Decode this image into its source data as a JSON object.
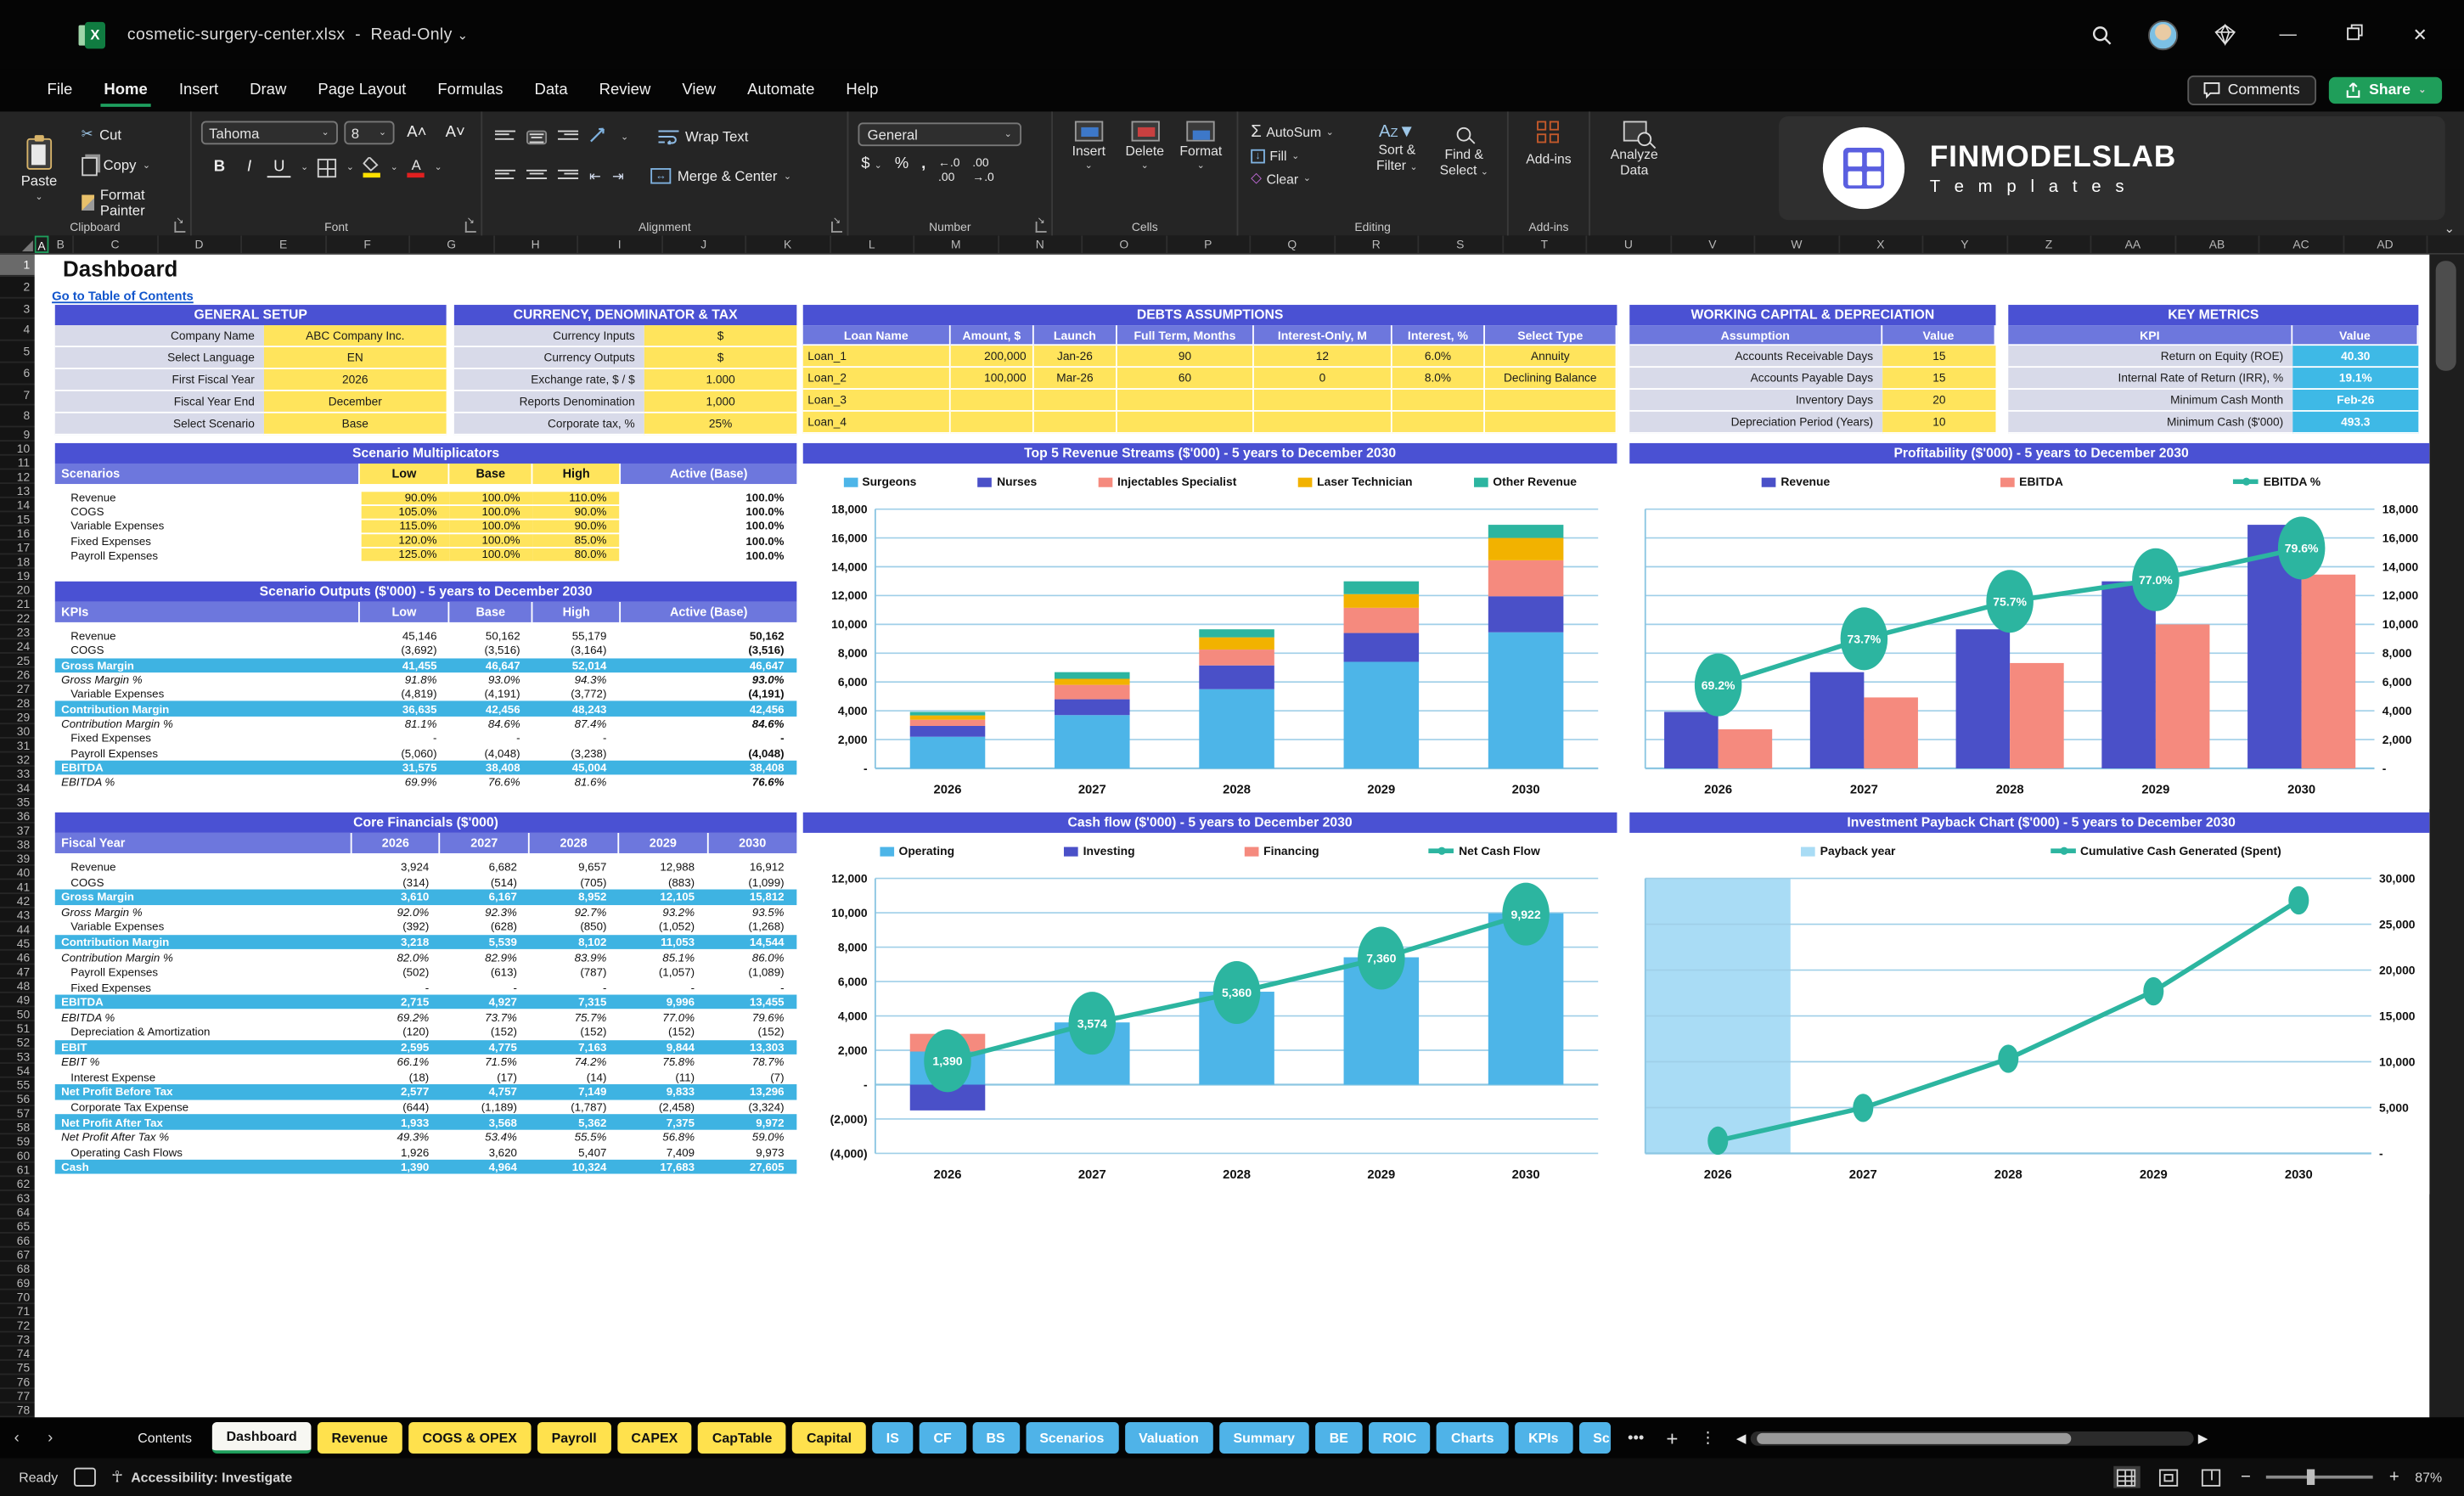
{
  "window": {
    "title": "cosmetic-surgery-center.xlsx",
    "separator": "-",
    "mode": "Read-Only",
    "menu_tabs": [
      "File",
      "Home",
      "Insert",
      "Draw",
      "Page Layout",
      "Formulas",
      "Data",
      "Review",
      "View",
      "Automate",
      "Help"
    ],
    "active_tab": "Home",
    "comments_label": "Comments",
    "share_label": "Share"
  },
  "ribbon": {
    "paste": "Paste",
    "cut": "Cut",
    "copy": "Copy",
    "format_painter": "Format Painter",
    "clipboard_group": "Clipboard",
    "font_name": "Tahoma",
    "font_size": "8",
    "font_group": "Font",
    "wrap_text": "Wrap Text",
    "merge_center": "Merge & Center",
    "alignment_group": "Alignment",
    "number_format": "General",
    "number_group": "Number",
    "insert": "Insert",
    "delete": "Delete",
    "format": "Format",
    "cells_group": "Cells",
    "autosum": "AutoSum",
    "fill": "Fill",
    "clear": "Clear",
    "sort_filter_1": "Sort &",
    "sort_filter_2": "Filter",
    "find_select_1": "Find &",
    "find_select_2": "Select",
    "editing_group": "Editing",
    "addins": "Add-ins",
    "addins_group": "Add-ins",
    "analyze_1": "Analyze",
    "analyze_2": "Data"
  },
  "logo": {
    "line1": "FINMODELSLAB",
    "line2": "T e m p l a t e s"
  },
  "sheet": {
    "title": "Dashboard",
    "link": "Go to Table of Contents",
    "col_headers": [
      "A",
      "B",
      "C",
      "D",
      "E",
      "F",
      "G",
      "H",
      "I",
      "J",
      "K",
      "L",
      "M",
      "N",
      "O",
      "P",
      "Q",
      "R",
      "S",
      "T",
      "U",
      "V",
      "W",
      "X",
      "Y",
      "Z",
      "AA",
      "AB",
      "AC",
      "AD"
    ],
    "row_count": 78
  },
  "tables": {
    "general_setup": {
      "title": "GENERAL SETUP",
      "rows": [
        [
          "Company Name",
          "ABC Company Inc."
        ],
        [
          "Select Language",
          "EN"
        ],
        [
          "First Fiscal Year",
          "2026"
        ],
        [
          "Fiscal Year End",
          "December"
        ],
        [
          "Select Scenario",
          "Base"
        ]
      ]
    },
    "currency": {
      "title": "CURRENCY, DENOMINATOR & TAX",
      "rows": [
        [
          "Currency Inputs",
          "$"
        ],
        [
          "Currency Outputs",
          "$"
        ],
        [
          "Exchange rate, $ / $",
          "1.000"
        ],
        [
          "Reports Denomination",
          "1,000"
        ],
        [
          "Corporate tax, %",
          "25%"
        ]
      ]
    },
    "debts": {
      "title": "DEBTS ASSUMPTIONS",
      "cols": [
        "Loan Name",
        "Amount, $",
        "Launch",
        "Full Term, Months",
        "Interest-Only, M",
        "Interest, %",
        "Select Type"
      ],
      "rows": [
        [
          "Loan_1",
          "200,000",
          "Jan-26",
          "90",
          "12",
          "6.0%",
          "Annuity"
        ],
        [
          "Loan_2",
          "100,000",
          "Mar-26",
          "60",
          "0",
          "8.0%",
          "Declining Balance"
        ],
        [
          "Loan_3",
          "",
          "",
          "",
          "",
          "",
          ""
        ],
        [
          "Loan_4",
          "",
          "",
          "",
          "",
          "",
          ""
        ]
      ]
    },
    "working_capital": {
      "title": "WORKING CAPITAL & DEPRECIATION",
      "subhead": [
        "Assumption",
        "Value"
      ],
      "rows": [
        [
          "Accounts Receivable Days",
          "15"
        ],
        [
          "Accounts Payable Days",
          "15"
        ],
        [
          "Inventory Days",
          "20"
        ],
        [
          "Depreciation Period (Years)",
          "10"
        ]
      ]
    },
    "key_metrics": {
      "title": "KEY METRICS",
      "subhead": [
        "KPI",
        "Value"
      ],
      "rows": [
        [
          "Return on Equity (ROE)",
          "40.30"
        ],
        [
          "Internal Rate of Return (IRR), %",
          "19.1%"
        ],
        [
          "Minimum Cash Month",
          "Feb-26"
        ],
        [
          "Minimum Cash ($'000)",
          "493.3"
        ]
      ]
    },
    "scenario_multiplicators": {
      "title": "Scenario Multiplicators",
      "head_label": "Scenarios",
      "cols": [
        "Low",
        "Base",
        "High",
        "Active (Base)"
      ],
      "rows": [
        {
          "label": "Revenue",
          "v": [
            "90.0%",
            "100.0%",
            "110.0%",
            "100.0%"
          ],
          "s": ""
        },
        {
          "label": "COGS",
          "v": [
            "105.0%",
            "100.0%",
            "90.0%",
            "100.0%"
          ],
          "s": ""
        },
        {
          "label": "Variable Expenses",
          "v": [
            "115.0%",
            "100.0%",
            "90.0%",
            "100.0%"
          ],
          "s": ""
        },
        {
          "label": "Fixed Expenses",
          "v": [
            "120.0%",
            "100.0%",
            "85.0%",
            "100.0%"
          ],
          "s": ""
        },
        {
          "label": "Payroll Expenses",
          "v": [
            "125.0%",
            "100.0%",
            "80.0%",
            "100.0%"
          ],
          "s": ""
        }
      ]
    },
    "scenario_outputs": {
      "title": "Scenario Outputs ($'000) - 5 years to December 2030",
      "head_label": "KPIs",
      "cols": [
        "Low",
        "Base",
        "High",
        "Active (Base)"
      ],
      "rows": [
        {
          "label": "Revenue",
          "v": [
            "45,146",
            "50,162",
            "55,179",
            "50,162"
          ],
          "s": ""
        },
        {
          "label": "COGS",
          "v": [
            "(3,692)",
            "(3,516)",
            "(3,164)",
            "(3,516)"
          ],
          "s": ""
        },
        {
          "label": "Gross Margin",
          "v": [
            "41,455",
            "46,647",
            "52,014",
            "46,647"
          ],
          "s": "h"
        },
        {
          "label": "Gross Margin %",
          "v": [
            "91.8%",
            "93.0%",
            "94.3%",
            "93.0%"
          ],
          "s": "i"
        },
        {
          "label": "Variable Expenses",
          "v": [
            "(4,819)",
            "(4,191)",
            "(3,772)",
            "(4,191)"
          ],
          "s": ""
        },
        {
          "label": "Contribution Margin",
          "v": [
            "36,635",
            "42,456",
            "48,243",
            "42,456"
          ],
          "s": "h"
        },
        {
          "label": "Contribution Margin %",
          "v": [
            "81.1%",
            "84.6%",
            "87.4%",
            "84.6%"
          ],
          "s": "i"
        },
        {
          "label": "Fixed Expenses",
          "v": [
            "-",
            "-",
            "-",
            "-"
          ],
          "s": ""
        },
        {
          "label": "Payroll Expenses",
          "v": [
            "(5,060)",
            "(4,048)",
            "(3,238)",
            "(4,048)"
          ],
          "s": ""
        },
        {
          "label": "EBITDA",
          "v": [
            "31,575",
            "38,408",
            "45,004",
            "38,408"
          ],
          "s": "h"
        },
        {
          "label": "EBITDA %",
          "v": [
            "69.9%",
            "76.6%",
            "81.6%",
            "76.6%"
          ],
          "s": "i"
        }
      ]
    },
    "core_financials": {
      "title": "Core Financials ($'000)",
      "head_label": "Fiscal Year",
      "cols": [
        "2026",
        "2027",
        "2028",
        "2029",
        "2030"
      ],
      "rows": [
        {
          "label": "Revenue",
          "v": [
            "3,924",
            "6,682",
            "9,657",
            "12,988",
            "16,912"
          ],
          "s": ""
        },
        {
          "label": "COGS",
          "v": [
            "(314)",
            "(514)",
            "(705)",
            "(883)",
            "(1,099)"
          ],
          "s": ""
        },
        {
          "label": "Gross Margin",
          "v": [
            "3,610",
            "6,167",
            "8,952",
            "12,105",
            "15,812"
          ],
          "s": "h"
        },
        {
          "label": "Gross Margin %",
          "v": [
            "92.0%",
            "92.3%",
            "92.7%",
            "93.2%",
            "93.5%"
          ],
          "s": "i"
        },
        {
          "label": "Variable Expenses",
          "v": [
            "(392)",
            "(628)",
            "(850)",
            "(1,052)",
            "(1,268)"
          ],
          "s": ""
        },
        {
          "label": "Contribution Margin",
          "v": [
            "3,218",
            "5,539",
            "8,102",
            "11,053",
            "14,544"
          ],
          "s": "h"
        },
        {
          "label": "Contribution Margin %",
          "v": [
            "82.0%",
            "82.9%",
            "83.9%",
            "85.1%",
            "86.0%"
          ],
          "s": "i"
        },
        {
          "label": "Payroll Expenses",
          "v": [
            "(502)",
            "(613)",
            "(787)",
            "(1,057)",
            "(1,089)"
          ],
          "s": ""
        },
        {
          "label": "Fixed Expenses",
          "v": [
            "-",
            "-",
            "-",
            "-",
            "-"
          ],
          "s": ""
        },
        {
          "label": "EBITDA",
          "v": [
            "2,715",
            "4,927",
            "7,315",
            "9,996",
            "13,455"
          ],
          "s": "h"
        },
        {
          "label": "EBITDA %",
          "v": [
            "69.2%",
            "73.7%",
            "75.7%",
            "77.0%",
            "79.6%"
          ],
          "s": "i"
        },
        {
          "label": "Depreciation & Amortization",
          "v": [
            "(120)",
            "(152)",
            "(152)",
            "(152)",
            "(152)"
          ],
          "s": ""
        },
        {
          "label": "EBIT",
          "v": [
            "2,595",
            "4,775",
            "7,163",
            "9,844",
            "13,303"
          ],
          "s": "h"
        },
        {
          "label": "EBIT %",
          "v": [
            "66.1%",
            "71.5%",
            "74.2%",
            "75.8%",
            "78.7%"
          ],
          "s": "i"
        },
        {
          "label": "Interest Expense",
          "v": [
            "(18)",
            "(17)",
            "(14)",
            "(11)",
            "(7)"
          ],
          "s": ""
        },
        {
          "label": "Net Profit Before Tax",
          "v": [
            "2,577",
            "4,757",
            "7,149",
            "9,833",
            "13,296"
          ],
          "s": "h"
        },
        {
          "label": "Corporate Tax Expense",
          "v": [
            "(644)",
            "(1,189)",
            "(1,787)",
            "(2,458)",
            "(3,324)"
          ],
          "s": ""
        },
        {
          "label": "Net Profit After Tax",
          "v": [
            "1,933",
            "3,568",
            "5,362",
            "7,375",
            "9,972"
          ],
          "s": "h"
        },
        {
          "label": "Net Profit After Tax %",
          "v": [
            "49.3%",
            "53.4%",
            "55.5%",
            "56.8%",
            "59.0%"
          ],
          "s": "i"
        },
        {
          "label": "Operating Cash Flows",
          "v": [
            "1,926",
            "3,620",
            "5,407",
            "7,409",
            "9,973"
          ],
          "s": ""
        },
        {
          "label": "Cash",
          "v": [
            "1,390",
            "4,964",
            "10,324",
            "17,683",
            "27,605"
          ],
          "s": "h"
        }
      ]
    }
  },
  "chart_data": {
    "revenue_streams": {
      "type": "bar",
      "stacked": true,
      "title": "Top 5 Revenue Streams ($'000) - 5 years to December 2030",
      "categories": [
        "2026",
        "2027",
        "2028",
        "2029",
        "2030"
      ],
      "ylim": [
        0,
        18000
      ],
      "step": 2000,
      "ticks_side": "left",
      "ytick_labels": [
        "18,000",
        "16,000",
        "14,000",
        "12,000",
        "10,000",
        "8,000",
        "6,000",
        "4,000",
        "2,000",
        "-"
      ],
      "series": [
        {
          "name": "Surgeons",
          "color": "#4db5e8",
          "values": [
            2200,
            3700,
            5500,
            7400,
            9450
          ]
        },
        {
          "name": "Nurses",
          "color": "#4a50c8",
          "values": [
            750,
            1100,
            1650,
            2000,
            2500
          ]
        },
        {
          "name": "Injectables Specialist",
          "color": "#f58a7e",
          "values": [
            430,
            1000,
            1100,
            1750,
            2500
          ]
        },
        {
          "name": "Laser Technician",
          "color": "#f2b200",
          "values": [
            300,
            420,
            850,
            950,
            1550
          ]
        },
        {
          "name": "Other Revenue",
          "color": "#2cb5a0",
          "values": [
            244,
            462,
            557,
            888,
            912
          ]
        }
      ]
    },
    "profitability": {
      "type": "bar",
      "grouped": true,
      "title": "Profitability ($'000) - 5 years to December 2030",
      "categories": [
        "2026",
        "2027",
        "2028",
        "2029",
        "2030"
      ],
      "ylim": [
        0,
        18000
      ],
      "step": 2000,
      "ticks_side": "right",
      "ytick_labels": [
        "18,000",
        "16,000",
        "14,000",
        "12,000",
        "10,000",
        "8,000",
        "6,000",
        "4,000",
        "2,000",
        "-"
      ],
      "series": [
        {
          "name": "Revenue",
          "color": "#4a50c8",
          "values": [
            3924,
            6682,
            9657,
            12988,
            16912
          ]
        },
        {
          "name": "EBITDA",
          "color": "#f58a7e",
          "values": [
            2715,
            4927,
            7315,
            9996,
            13455
          ]
        }
      ],
      "line": {
        "name": "EBITDA %",
        "color": "#2cb5a0",
        "values": [
          5800,
          9000,
          11600,
          13100,
          15300
        ],
        "labels": [
          "69.2%",
          "73.7%",
          "75.7%",
          "77.0%",
          "79.6%"
        ]
      }
    },
    "cash_flow": {
      "type": "bar",
      "stacked": true,
      "title": "Cash flow ($'000) - 5 years to December 2030",
      "categories": [
        "2026",
        "2027",
        "2028",
        "2029",
        "2030"
      ],
      "ylim": [
        -4000,
        12000
      ],
      "step": 2000,
      "ticks_side": "left",
      "ytick_labels": [
        "12,000",
        "10,000",
        "8,000",
        "6,000",
        "4,000",
        "2,000",
        "-",
        "(2,000)",
        "(4,000)"
      ],
      "series": [
        {
          "name": "Operating",
          "color": "#4db5e8",
          "values": [
            1926,
            3620,
            5407,
            7409,
            9973
          ]
        },
        {
          "name": "Financing",
          "color": "#f58a7e",
          "values": [
            1030,
            0,
            0,
            0,
            0
          ]
        },
        {
          "name": "Investing",
          "color": "#4a50c8",
          "values": [
            -1500,
            0,
            0,
            0,
            0
          ]
        }
      ],
      "line": {
        "name": "Net Cash Flow",
        "color": "#2cb5a0",
        "values": [
          1390,
          3574,
          5360,
          7360,
          9922
        ],
        "labels": [
          "1,390",
          "3,574",
          "5,360",
          "7,360",
          "9,922"
        ]
      }
    },
    "payback": {
      "type": "line",
      "title": "Investment Payback Chart ($'000) - 5 years to December 2030",
      "categories": [
        "2026",
        "2027",
        "2028",
        "2029",
        "2030"
      ],
      "ylim": [
        0,
        30000
      ],
      "step": 5000,
      "ticks_side": "right",
      "ytick_labels": [
        "30,000",
        "25,000",
        "20,000",
        "15,000",
        "10,000",
        "5,000",
        "-"
      ],
      "area": {
        "name": "Payback year",
        "color": "#a9dcf5",
        "fraction": 0.2
      },
      "line": {
        "name": "Cumulative Cash Generated (Spent)",
        "color": "#2cb5a0",
        "values": [
          1390,
          4964,
          10324,
          17683,
          27605
        ],
        "labels": []
      }
    }
  },
  "sheet_tabs": {
    "tabs": [
      {
        "label": "Contents",
        "style": "dark"
      },
      {
        "label": "Dashboard",
        "style": "active"
      },
      {
        "label": "Revenue",
        "style": "yellow"
      },
      {
        "label": "COGS & OPEX",
        "style": "yellow"
      },
      {
        "label": "Payroll",
        "style": "yellow"
      },
      {
        "label": "CAPEX",
        "style": "yellow"
      },
      {
        "label": "CapTable",
        "style": "yellow"
      },
      {
        "label": "Capital",
        "style": "yellow"
      },
      {
        "label": "IS",
        "style": "blue"
      },
      {
        "label": "CF",
        "style": "blue"
      },
      {
        "label": "BS",
        "style": "blue"
      },
      {
        "label": "Scenarios",
        "style": "blue"
      },
      {
        "label": "Valuation",
        "style": "blue"
      },
      {
        "label": "Summary",
        "style": "blue"
      },
      {
        "label": "BE",
        "style": "blue"
      },
      {
        "label": "ROIC",
        "style": "blue"
      },
      {
        "label": "Charts",
        "style": "blue"
      },
      {
        "label": "KPIs",
        "style": "blue"
      },
      {
        "label": "Sc",
        "style": "blue"
      }
    ],
    "more": "•••",
    "add": "+",
    "menu": "⋮"
  },
  "status": {
    "ready": "Ready",
    "accessibility": "Accessibility: Investigate",
    "zoom": "87%"
  }
}
